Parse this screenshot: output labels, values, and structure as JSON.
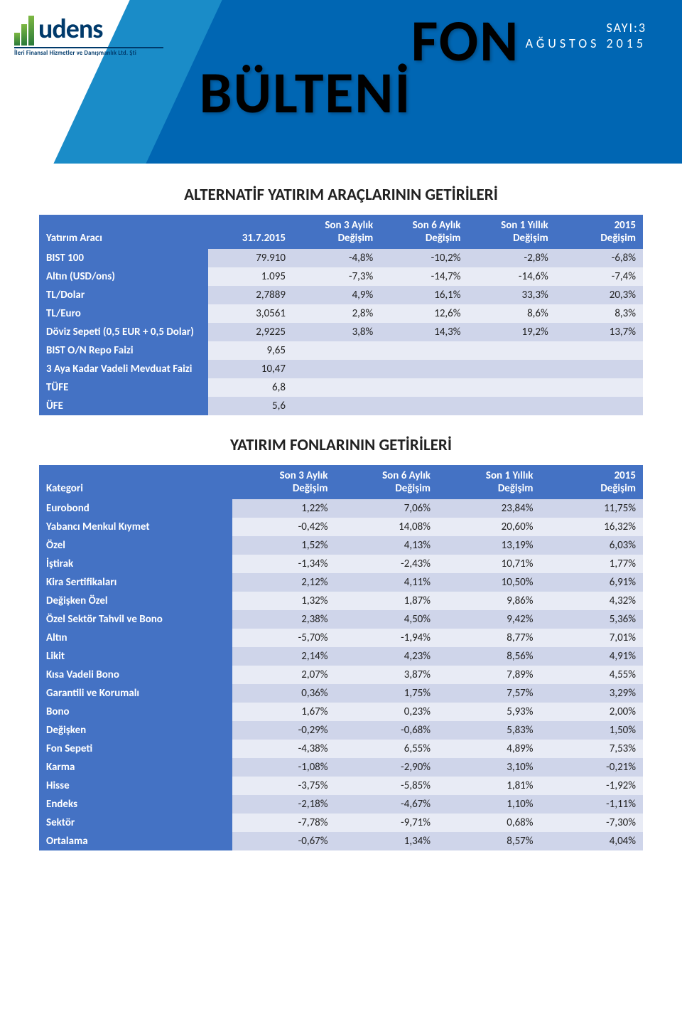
{
  "header": {
    "logo_text": "udens",
    "logo_tagline": "İleri Finansal Hizmetler ve Danışmanlık Ltd. Şti",
    "title_line1": "FON",
    "title_line2": "BÜLTENİ",
    "issue_no": "SAYI:3",
    "issue_date": "AĞUSTOS 2015",
    "colors": {
      "bg_light": "#1a8cc8",
      "bg_dark": "#0066b3",
      "logo_color": "#003a6b"
    }
  },
  "table1": {
    "title": "ALTERNATİF YATIRIM ARAÇLARININ GETİRİLERİ",
    "columns": [
      "Yatırım Aracı",
      "31.7.2015",
      "Son 3 Aylık Değişim",
      "Son 6 Aylık Değişim",
      "Son 1 Yıllık Değişim",
      "2015 Değişim"
    ],
    "rows": [
      [
        "BIST 100",
        "79.910",
        "-4,8%",
        "-10,2%",
        "-2,8%",
        "-6,8%"
      ],
      [
        "Altın (USD/ons)",
        "1.095",
        "-7,3%",
        "-14,7%",
        "-14,6%",
        "-7,4%"
      ],
      [
        "TL/Dolar",
        "2,7889",
        "4,9%",
        "16,1%",
        "33,3%",
        "20,3%"
      ],
      [
        "TL/Euro",
        "3,0561",
        "2,8%",
        "12,6%",
        "8,6%",
        "8,3%"
      ],
      [
        "Döviz Sepeti (0,5 EUR + 0,5 Dolar)",
        "2,9225",
        "3,8%",
        "14,3%",
        "19,2%",
        "13,7%"
      ],
      [
        "BIST O/N Repo Faizi",
        "9,65",
        "",
        "",
        "",
        ""
      ],
      [
        "3 Aya Kadar Vadeli Mevduat Faizi",
        "10,47",
        "",
        "",
        "",
        ""
      ],
      [
        "TÜFE",
        "6,8",
        "",
        "",
        "",
        ""
      ],
      [
        "ÜFE",
        "5,6",
        "",
        "",
        "",
        ""
      ]
    ]
  },
  "table2": {
    "title": "YATIRIM FONLARININ GETİRİLERİ",
    "columns": [
      "Kategori",
      "Son 3 Aylık Değişim",
      "Son 6 Aylık Değişim",
      "Son 1 Yıllık Değişim",
      "2015 Değişim"
    ],
    "rows": [
      [
        "Eurobond",
        "1,22%",
        "7,06%",
        "23,84%",
        "11,75%"
      ],
      [
        "Yabancı Menkul Kıymet",
        "-0,42%",
        "14,08%",
        "20,60%",
        "16,32%"
      ],
      [
        "Özel",
        "1,52%",
        "4,13%",
        "13,19%",
        "6,03%"
      ],
      [
        "İştirak",
        "-1,34%",
        "-2,43%",
        "10,71%",
        "1,77%"
      ],
      [
        "Kira Sertifikaları",
        "2,12%",
        "4,11%",
        "10,50%",
        "6,91%"
      ],
      [
        "Değişken Özel",
        "1,32%",
        "1,87%",
        "9,86%",
        "4,32%"
      ],
      [
        "Özel Sektör Tahvil ve Bono",
        "2,38%",
        "4,50%",
        "9,42%",
        "5,36%"
      ],
      [
        "Altın",
        "-5,70%",
        "-1,94%",
        "8,77%",
        "7,01%"
      ],
      [
        "Likit",
        "2,14%",
        "4,23%",
        "8,56%",
        "4,91%"
      ],
      [
        "Kısa Vadeli Bono",
        "2,07%",
        "3,87%",
        "7,89%",
        "4,55%"
      ],
      [
        "Garantili ve Korumalı",
        "0,36%",
        "1,75%",
        "7,57%",
        "3,29%"
      ],
      [
        "Bono",
        "1,67%",
        "0,23%",
        "5,93%",
        "2,00%"
      ],
      [
        "Değişken",
        "-0,29%",
        "-0,68%",
        "5,83%",
        "1,50%"
      ],
      [
        "Fon Sepeti",
        "-4,38%",
        "6,55%",
        "4,89%",
        "7,53%"
      ],
      [
        "Karma",
        "-1,08%",
        "-2,90%",
        "3,10%",
        "-0,21%"
      ],
      [
        "Hisse",
        "-3,75%",
        "-5,85%",
        "1,81%",
        "-1,92%"
      ],
      [
        "Endeks",
        "-2,18%",
        "-4,67%",
        "1,10%",
        "-1,11%"
      ],
      [
        "Sektör",
        "-7,78%",
        "-9,71%",
        "0,68%",
        "-7,30%"
      ],
      [
        "Ortalama",
        "-0,67%",
        "1,34%",
        "8,57%",
        "4,04%"
      ]
    ]
  },
  "style": {
    "header_bg": "#4472c4",
    "row_odd": "#cfd5ea",
    "row_even": "#e8ebf5",
    "text_white": "#ffffff",
    "text_dark": "#222222",
    "col_widths_t1": [
      "28%",
      "14%",
      "14.5%",
      "14.5%",
      "14.5%",
      "14.5%"
    ],
    "col_widths_t2": [
      "32%",
      "17%",
      "17%",
      "17%",
      "17%"
    ]
  }
}
